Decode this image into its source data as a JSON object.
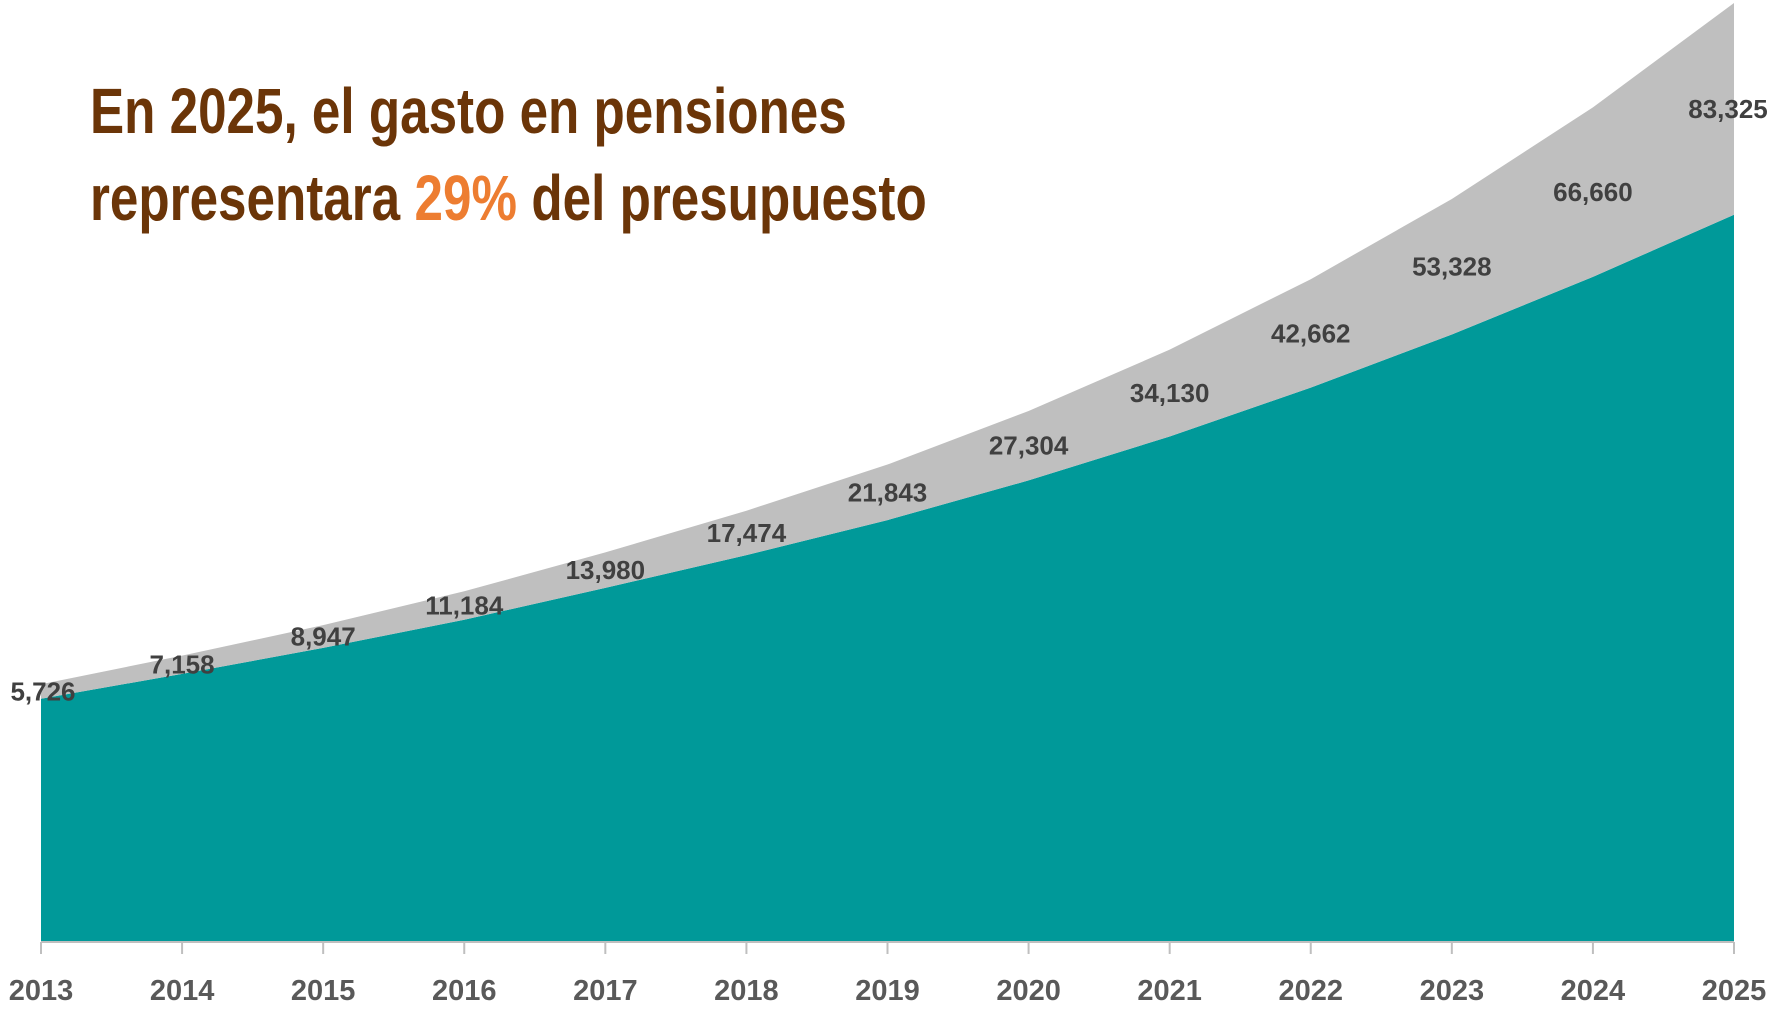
{
  "chart_data": {
    "type": "stacked_area",
    "title": {
      "line1": "En 2025, el gasto en pensiones",
      "line2_before": "representara",
      "highlight": "29%",
      "line2_after": "del presupuesto"
    },
    "categories": [
      "2013",
      "2014",
      "2015",
      "2016",
      "2017",
      "2018",
      "2019",
      "2020",
      "2021",
      "2022",
      "2023",
      "2024",
      "2025"
    ],
    "series": [
      {
        "color": "#009999",
        "values": [
          95700,
          105500,
          115700,
          126800,
          139300,
          152200,
          166000,
          181600,
          198900,
          218100,
          239000,
          261700,
          286100
        ]
      },
      {
        "color": "#bfbfbf",
        "values": [
          5726,
          7158,
          8947,
          11184,
          13980,
          17474,
          21843,
          27304,
          34130,
          42662,
          53328,
          66660,
          83325
        ],
        "value_labels": [
          "5,726",
          "7,158",
          "8,947",
          "11,184",
          "13,980",
          "17,474",
          "21,843",
          "27,304",
          "34,130",
          "42,662",
          "53,328",
          "66,660",
          "83,325"
        ]
      }
    ]
  }
}
